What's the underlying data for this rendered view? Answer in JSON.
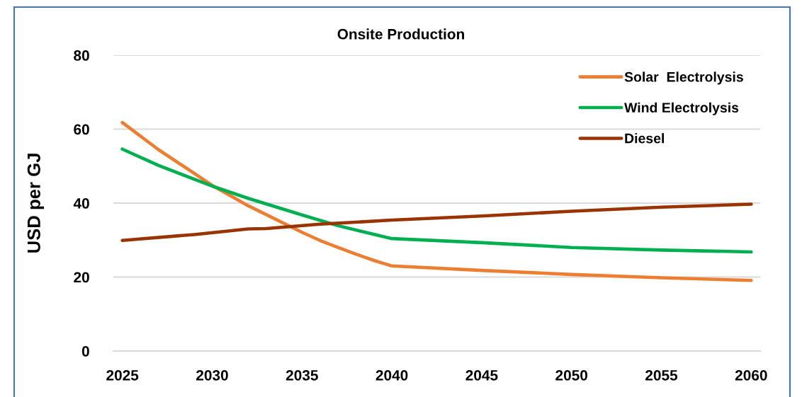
{
  "chart_data": {
    "type": "line",
    "title": "Onsite Production",
    "ylabel": "USD per GJ",
    "xlim": [
      2024.5,
      2060.5
    ],
    "xticks": [
      2025,
      2030,
      2035,
      2040,
      2045,
      2050,
      2055,
      2060
    ],
    "ylim": [
      0,
      80
    ],
    "yticks": [
      0,
      20,
      40,
      60,
      80
    ],
    "grid": "y",
    "legend": "top right",
    "line_style": "solid",
    "series": [
      {
        "name": "Solar  Electrolysis",
        "color": "#ed7d31",
        "x": [
          2025,
          2027,
          2030,
          2032,
          2035,
          2036,
          2037,
          2038,
          2039,
          2040,
          2045,
          2050,
          2055,
          2060
        ],
        "values": [
          61.8,
          54.5,
          44.8,
          39.3,
          32.1,
          29.9,
          28.0,
          26.2,
          24.5,
          23.0,
          21.8,
          20.7,
          19.8,
          19.1
        ]
      },
      {
        "name": "Wind Electrolysis",
        "color": "#00b050",
        "x": [
          2025,
          2027,
          2030,
          2032,
          2035,
          2037,
          2040,
          2045,
          2050,
          2055,
          2060
        ],
        "values": [
          54.6,
          50.2,
          44.6,
          41.3,
          36.8,
          33.9,
          30.4,
          29.3,
          28.0,
          27.3,
          26.8
        ]
      },
      {
        "name": "Diesel",
        "color": "#993300",
        "x": [
          2025,
          2029,
          2032,
          2033,
          2036,
          2040,
          2045,
          2050,
          2055,
          2060
        ],
        "values": [
          29.9,
          31.5,
          33.0,
          33.1,
          34.3,
          35.4,
          36.5,
          37.8,
          38.9,
          39.7
        ]
      }
    ]
  }
}
